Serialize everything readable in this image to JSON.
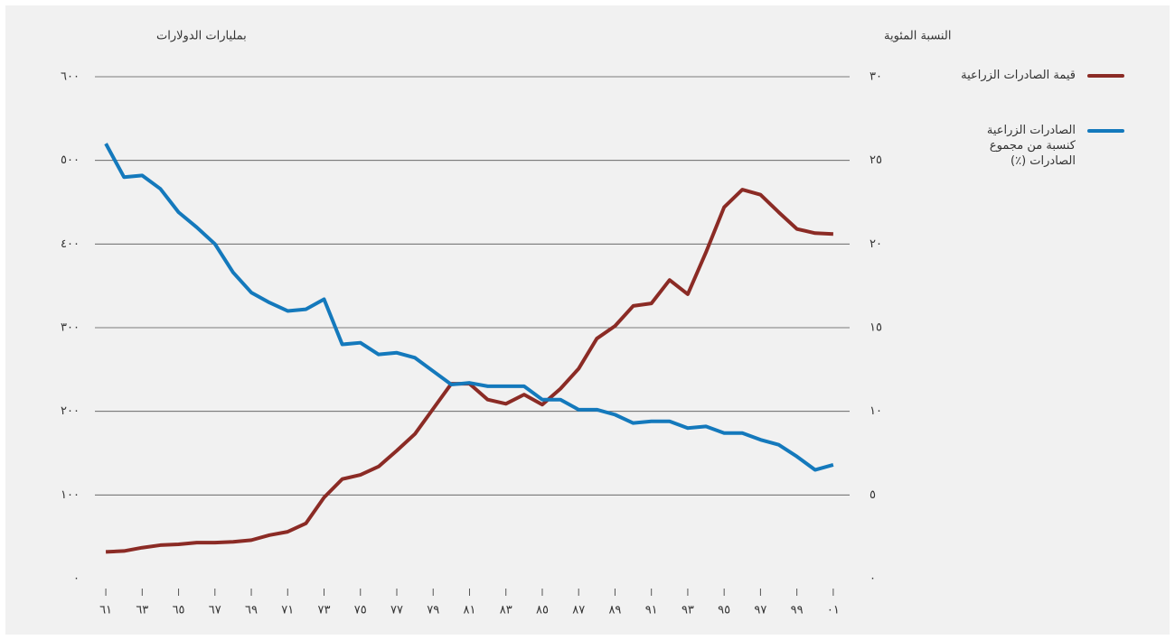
{
  "chart_data": {
    "type": "line",
    "y_label": "بمليارات الدولارات",
    "y2_label": "النسبة المئوية",
    "x": [
      1961,
      1962,
      1963,
      1964,
      1965,
      1966,
      1967,
      1968,
      1969,
      1970,
      1971,
      1972,
      1973,
      1974,
      1975,
      1976,
      1977,
      1978,
      1979,
      1980,
      1981,
      1982,
      1983,
      1984,
      1985,
      1986,
      1987,
      1988,
      1989,
      1990,
      1991,
      1992,
      1993,
      1994,
      1995,
      1996,
      1997,
      1998,
      1999,
      2000,
      2001
    ],
    "xlim": [
      1960.4,
      2001.9
    ],
    "xticks": [
      {
        "value": 1961,
        "label": "٦١"
      },
      {
        "value": 1963,
        "label": "٦٣"
      },
      {
        "value": 1965,
        "label": "٦٥"
      },
      {
        "value": 1967,
        "label": "٦٧"
      },
      {
        "value": 1969,
        "label": "٦٩"
      },
      {
        "value": 1971,
        "label": "٧١"
      },
      {
        "value": 1973,
        "label": "٧٣"
      },
      {
        "value": 1975,
        "label": "٧٥"
      },
      {
        "value": 1977,
        "label": "٧٧"
      },
      {
        "value": 1979,
        "label": "٧٩"
      },
      {
        "value": 1981,
        "label": "٨١"
      },
      {
        "value": 1983,
        "label": "٨٣"
      },
      {
        "value": 1985,
        "label": "٨٥"
      },
      {
        "value": 1987,
        "label": "٨٧"
      },
      {
        "value": 1989,
        "label": "٨٩"
      },
      {
        "value": 1991,
        "label": "٩١"
      },
      {
        "value": 1993,
        "label": "٩٣"
      },
      {
        "value": 1995,
        "label": "٩٥"
      },
      {
        "value": 1997,
        "label": "٩٧"
      },
      {
        "value": 1999,
        "label": "٩٩"
      },
      {
        "value": 2001,
        "label": "٠١"
      }
    ],
    "ylim": [
      0,
      600
    ],
    "yticks": [
      {
        "value": 0,
        "label": "٠"
      },
      {
        "value": 100,
        "label": "١٠٠"
      },
      {
        "value": 200,
        "label": "٢٠٠"
      },
      {
        "value": 300,
        "label": "٣٠٠"
      },
      {
        "value": 400,
        "label": "٤٠٠"
      },
      {
        "value": 500,
        "label": "٥٠٠"
      },
      {
        "value": 600,
        "label": "٦٠٠"
      }
    ],
    "y2lim": [
      0,
      30
    ],
    "y2ticks": [
      {
        "value": 0,
        "label": "٠"
      },
      {
        "value": 5,
        "label": "٥"
      },
      {
        "value": 10,
        "label": "١٠"
      },
      {
        "value": 15,
        "label": "١٥"
      },
      {
        "value": 20,
        "label": "٢٠"
      },
      {
        "value": 25,
        "label": "٢٥"
      },
      {
        "value": 30,
        "label": "٣٠"
      }
    ],
    "grid": true,
    "series": [
      {
        "name": "قيمة الصادرات الزراعية",
        "color": "#8b2b25",
        "values": [
          32,
          33,
          37,
          40,
          41,
          43,
          43,
          44,
          46,
          52,
          56,
          66,
          97,
          119,
          124,
          134,
          153,
          173,
          203,
          233,
          233,
          214,
          209,
          220,
          208,
          227,
          251,
          287,
          302,
          326,
          329,
          357,
          340,
          390,
          444,
          465,
          459,
          438,
          418,
          413,
          412
        ]
      },
      {
        "name": "الصادرات الزراعية\nكنسبة من مجموع\nالصادرات (٪)",
        "color": "#1479bc",
        "axis": "y2",
        "values": [
          26.0,
          24.0,
          24.1,
          23.3,
          21.9,
          21.0,
          20.0,
          18.3,
          17.1,
          16.5,
          16.0,
          16.1,
          16.7,
          14.0,
          14.1,
          13.4,
          13.5,
          13.2,
          12.4,
          11.6,
          11.7,
          11.5,
          11.5,
          11.5,
          10.7,
          10.7,
          10.1,
          10.1,
          9.8,
          9.3,
          9.4,
          9.4,
          9.0,
          9.1,
          8.7,
          8.7,
          8.3,
          8.0,
          7.3,
          6.5,
          6.8
        ]
      }
    ]
  }
}
